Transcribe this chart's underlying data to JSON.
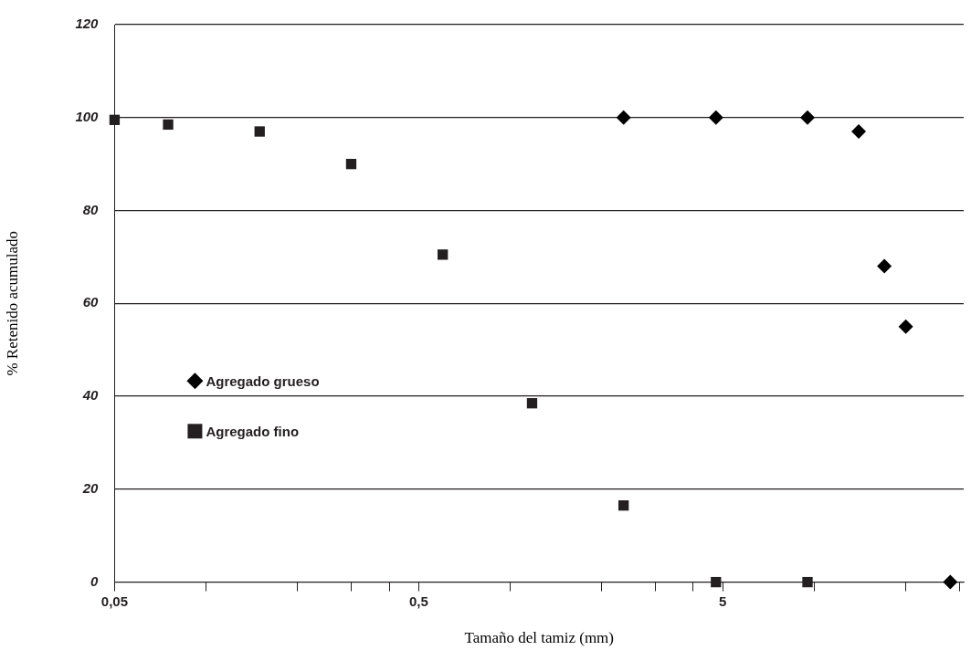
{
  "chart_data": {
    "type": "scatter",
    "xlabel": "Tamaño del tamiz (mm)",
    "ylabel": "% Retenido acumulado",
    "log": "x",
    "xlim": [
      0.05,
      31
    ],
    "ylim": [
      0,
      120
    ],
    "xticks": [
      {
        "value": 0.05,
        "label": "0,05"
      },
      {
        "value": 0.1,
        "label": null
      },
      {
        "value": 0.2,
        "label": null
      },
      {
        "value": 0.3,
        "label": null
      },
      {
        "value": 0.4,
        "label": null
      },
      {
        "value": 0.5,
        "label": "0,5"
      },
      {
        "value": 1,
        "label": null
      },
      {
        "value": 2,
        "label": null
      },
      {
        "value": 3,
        "label": null
      },
      {
        "value": 4,
        "label": null
      },
      {
        "value": 5,
        "label": "5"
      },
      {
        "value": 10,
        "label": null
      },
      {
        "value": 20,
        "label": null
      },
      {
        "value": 30,
        "label": null
      }
    ],
    "yticks": [
      0,
      20,
      40,
      60,
      80,
      100,
      120
    ],
    "grid": "y",
    "legend": "left",
    "series": [
      {
        "name": "Agregado grueso",
        "color": "#000000",
        "marker": "diamond",
        "x": [
          2.36,
          4.75,
          9.5,
          14,
          17,
          20,
          28
        ],
        "values": [
          100,
          100,
          100,
          97,
          68,
          55,
          0
        ]
      },
      {
        "name": "Agregado fino",
        "color": "#231f20",
        "marker": "square",
        "x": [
          0.05,
          0.075,
          0.15,
          0.3,
          0.6,
          1.18,
          2.36,
          4.75,
          9.5
        ],
        "values": [
          99.5,
          98.5,
          97,
          90,
          70.5,
          38.5,
          16.5,
          0,
          0
        ]
      }
    ]
  }
}
